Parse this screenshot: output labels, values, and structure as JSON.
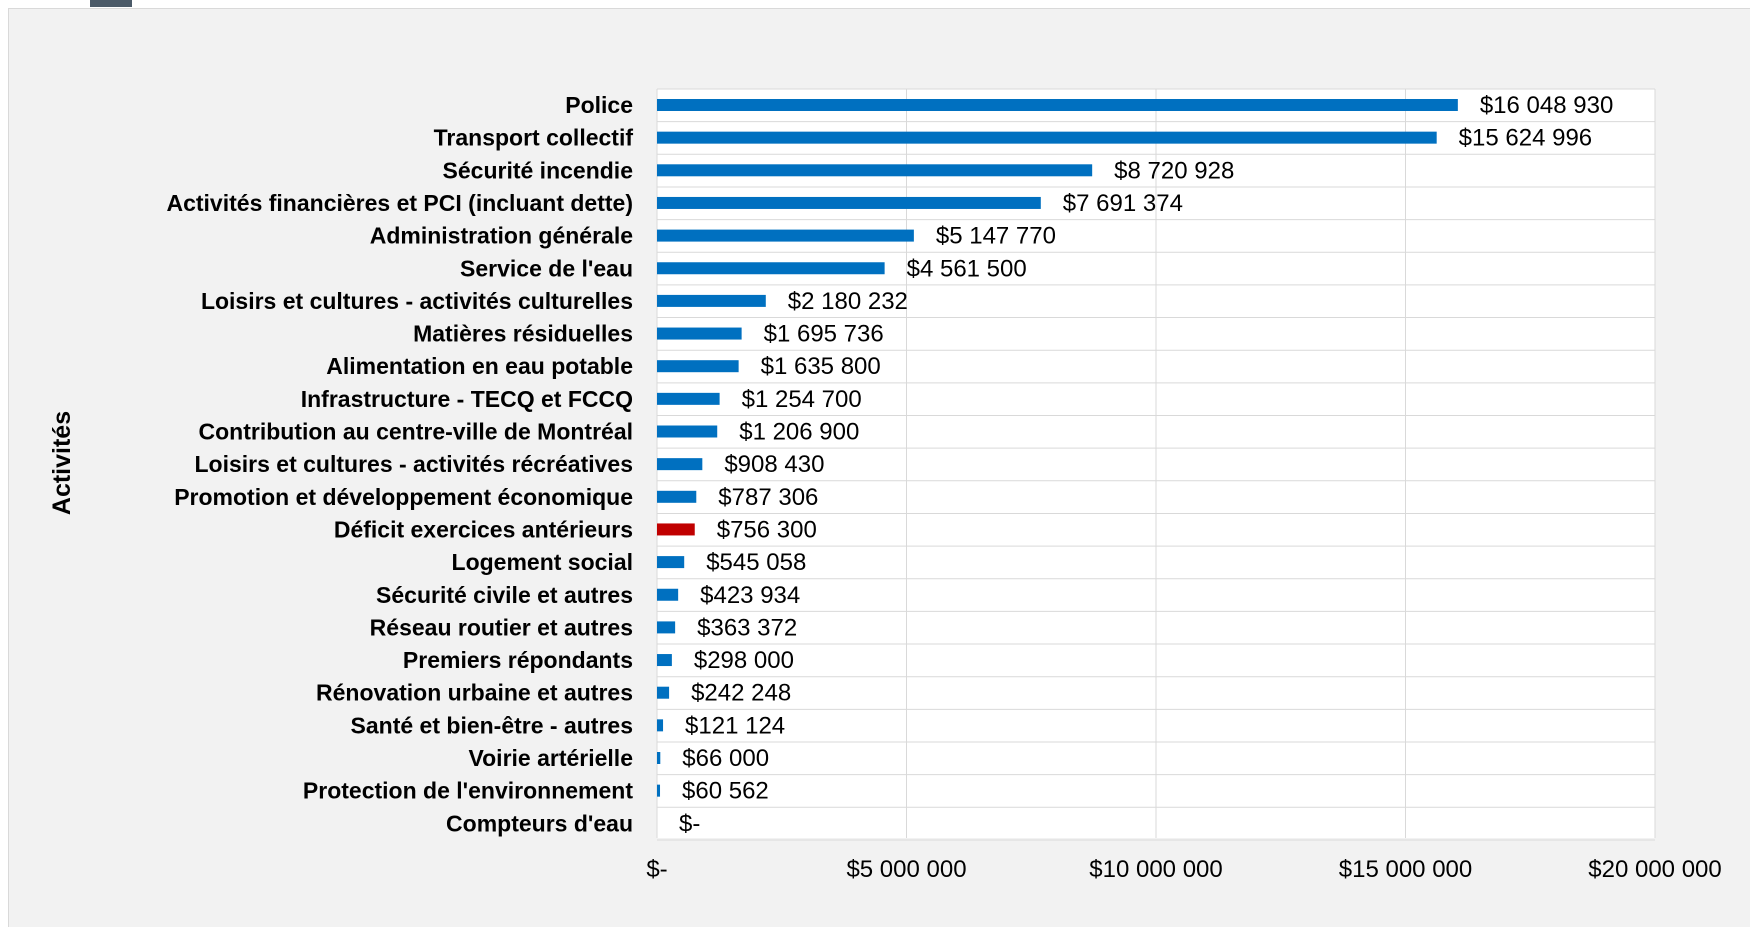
{
  "colors": {
    "background": "#f2f2f2",
    "plot_background": "#ffffff",
    "gridline": "#d9d9d9",
    "bar": "#0070c0",
    "highlight_bar": "#c00000",
    "text": "#000000"
  },
  "icons": {
    "corner": "app-icon"
  },
  "chart_data": {
    "type": "bar",
    "orientation": "horizontal",
    "title": "",
    "xlabel": "",
    "ylabel": "Activités",
    "xlim": [
      0,
      20000000
    ],
    "x_ticks": [
      0,
      5000000,
      10000000,
      15000000,
      20000000
    ],
    "x_tick_labels": [
      "$-",
      "$5 000 000",
      "$10 000 000",
      "$15 000 000",
      "$20 000 000"
    ],
    "grid": true,
    "legend": "none",
    "categories": [
      "Police",
      "Transport collectif",
      "Sécurité incendie",
      "Activités financières et PCI (incluant dette)",
      "Administration générale",
      "Service de l'eau",
      "Loisirs et cultures - activités culturelles",
      "Matières résiduelles",
      "Alimentation en eau potable",
      "Infrastructure - TECQ et FCCQ",
      "Contribution au centre-ville de Montréal",
      "Loisirs et cultures - activités récréatives",
      "Promotion et développement économique",
      "Déficit exercices antérieurs",
      "Logement social",
      "Sécurité civile et autres",
      "Réseau routier et autres",
      "Premiers répondants",
      "Rénovation urbaine et autres",
      "Santé et bien-être - autres",
      "Voirie artérielle",
      "Protection de l'environnement",
      "Compteurs d'eau"
    ],
    "values": [
      16048930,
      15624996,
      8720928,
      7691374,
      5147770,
      4561500,
      2180232,
      1695736,
      1635800,
      1254700,
      1206900,
      908430,
      787306,
      756300,
      545058,
      423934,
      363372,
      298000,
      242248,
      121124,
      66000,
      60562,
      0
    ],
    "data_labels": [
      "$16 048 930",
      "$15 624 996",
      "$8 720 928",
      "$7 691 374",
      "$5 147 770",
      "$4 561 500",
      "$2 180 232",
      "$1 695 736",
      "$1 635 800",
      "$1 254 700",
      "$1 206 900",
      "$908 430",
      "$787 306",
      "$756 300",
      "$545 058",
      "$423 934",
      "$363 372",
      "$298 000",
      "$242 248",
      "$121 124",
      "$66 000",
      "$60 562",
      "$-"
    ],
    "highlight_index": 13
  }
}
